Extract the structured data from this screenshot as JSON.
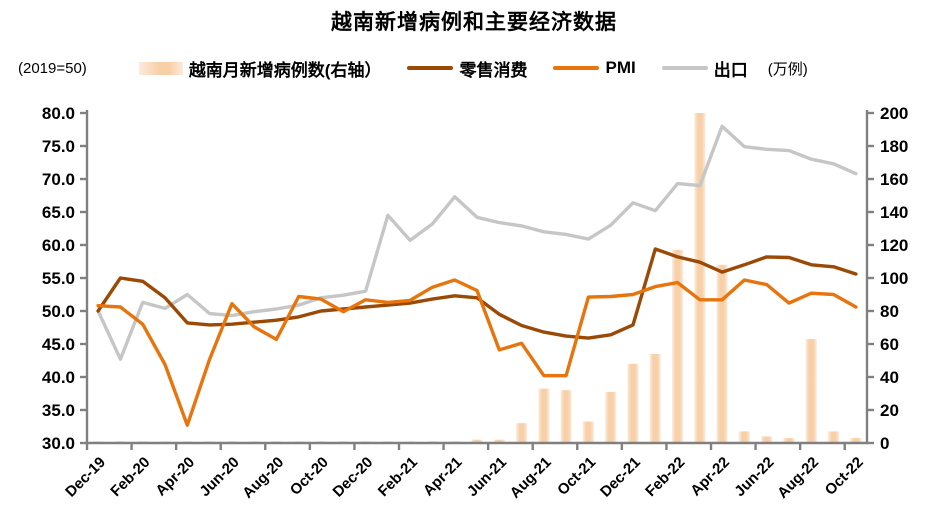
{
  "title": "越南新增病例和主要经济数据",
  "left_axis_note": "(2019=50)",
  "right_axis_note": "(万例)",
  "legend": {
    "cases": "越南月新增病例数(右轴）",
    "retail": "零售消费",
    "pmi": "PMI",
    "exports": "出口"
  },
  "colors": {
    "retail": "#9A4A06",
    "pmi": "#E8740E",
    "exports": "#C6C6C6",
    "bar_light": "#FCEBDD",
    "bar_dark": "#F7D0A8",
    "axis": "#808080",
    "text": "#000000"
  },
  "chart_data": {
    "type": "bar+line combo",
    "title": "越南新增病例和主要经济数据",
    "left_axis": {
      "min": 30,
      "max": 80,
      "step": 5,
      "label_format": "one_decimal",
      "note": "(2019=50)"
    },
    "right_axis": {
      "min": 0,
      "max": 200,
      "step": 20,
      "note": "(万例)"
    },
    "x_tick_label_every": 2,
    "grid": false,
    "legend_position": "top",
    "categories": [
      "Dec-19",
      "Jan-20",
      "Feb-20",
      "Mar-20",
      "Apr-20",
      "May-20",
      "Jun-20",
      "Jul-20",
      "Aug-20",
      "Sep-20",
      "Oct-20",
      "Nov-20",
      "Dec-20",
      "Jan-21",
      "Feb-21",
      "Mar-21",
      "Apr-21",
      "May-21",
      "Jun-21",
      "Jul-21",
      "Aug-21",
      "Sep-21",
      "Oct-21",
      "Nov-21",
      "Dec-21",
      "Jan-22",
      "Feb-22",
      "Mar-22",
      "Apr-22",
      "May-22",
      "Jun-22",
      "Jul-22",
      "Aug-22",
      "Sep-22",
      "Oct-22"
    ],
    "series": [
      {
        "name": "越南月新增病例数(右轴）",
        "type": "bar",
        "axis": "right",
        "color_key": "bar",
        "values": [
          1,
          1,
          1,
          1,
          1,
          1,
          1,
          1,
          1,
          1,
          1,
          1,
          1,
          1,
          1,
          1,
          1,
          2,
          2,
          12,
          33,
          32,
          13,
          31,
          48,
          54,
          117,
          200,
          108,
          7,
          4,
          3,
          63,
          7,
          3
        ]
      },
      {
        "name": "出口",
        "type": "line",
        "axis": "left",
        "color_key": "exports",
        "values": [
          50.0,
          42.7,
          51.3,
          50.4,
          52.5,
          49.6,
          49.3,
          49.9,
          50.3,
          50.9,
          52.0,
          52.4,
          53.0,
          64.5,
          60.7,
          63.2,
          67.3,
          64.2,
          63.4,
          62.9,
          62.0,
          61.6,
          60.9,
          63.0,
          66.4,
          65.2,
          69.3,
          69.0,
          78.0,
          74.9,
          74.5,
          74.3,
          73.0,
          72.3,
          70.8
        ]
      },
      {
        "name": "零售消费",
        "type": "line",
        "axis": "left",
        "color_key": "retail",
        "values": [
          50.0,
          55.0,
          54.5,
          52.0,
          48.2,
          47.9,
          48.0,
          48.3,
          48.6,
          49.1,
          50.0,
          50.3,
          50.6,
          50.9,
          51.2,
          51.8,
          52.3,
          52.0,
          49.5,
          47.8,
          46.8,
          46.2,
          45.9,
          46.4,
          47.9,
          59.4,
          58.2,
          57.4,
          55.9,
          57.0,
          58.2,
          58.1,
          57.0,
          56.7,
          55.6
        ]
      },
      {
        "name": "PMI",
        "type": "line",
        "axis": "left",
        "color_key": "pmi",
        "values": [
          50.8,
          50.6,
          48.0,
          41.9,
          32.7,
          42.7,
          51.1,
          47.6,
          45.7,
          52.2,
          51.8,
          49.9,
          51.7,
          51.3,
          51.6,
          53.6,
          54.7,
          53.1,
          44.1,
          45.1,
          40.2,
          40.2,
          52.1,
          52.2,
          52.5,
          53.7,
          54.3,
          51.7,
          51.7,
          54.7,
          54.0,
          51.2,
          52.7,
          52.5,
          50.6
        ]
      }
    ]
  }
}
